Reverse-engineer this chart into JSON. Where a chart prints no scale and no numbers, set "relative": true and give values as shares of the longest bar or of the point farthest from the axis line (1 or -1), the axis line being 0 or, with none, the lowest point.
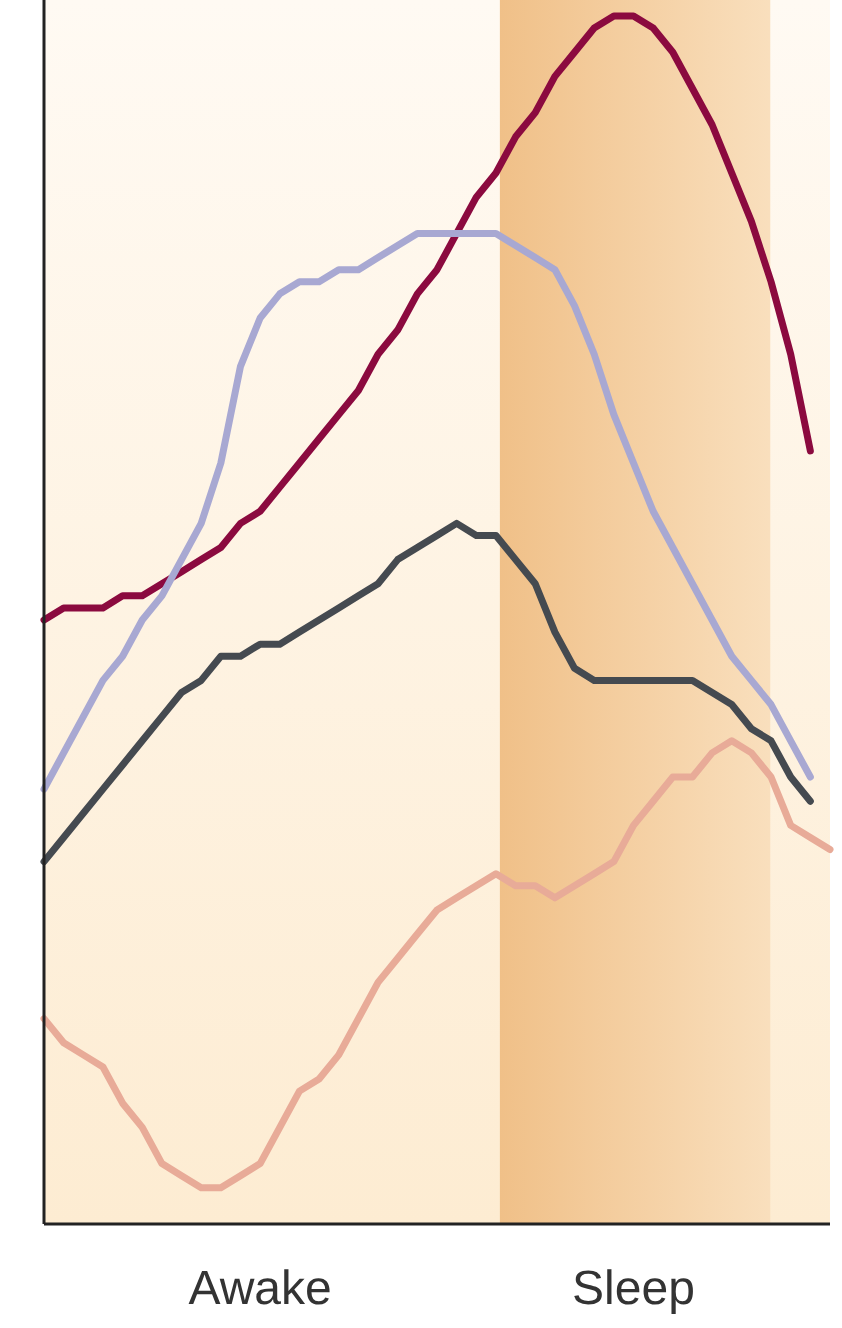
{
  "chart_data": {
    "type": "line",
    "relative": true,
    "tick_labels": "x",
    "line_style": "solid",
    "categories": [
      null,
      null,
      null,
      null,
      null,
      null,
      null,
      null,
      null,
      null,
      null,
      "Awake",
      null,
      null,
      null,
      null,
      null,
      null,
      null,
      null,
      null,
      null,
      null,
      null,
      null,
      null,
      null,
      null,
      null,
      null,
      "Sleep",
      null,
      null,
      null,
      null,
      null,
      null,
      null,
      null,
      null,
      null
    ],
    "series": [
      {
        "color": "#8b0a3f",
        "values": [
          0.5,
          0.51,
          0.51,
          0.51,
          0.52,
          0.52,
          0.53,
          0.54,
          0.55,
          0.56,
          0.58,
          0.59,
          0.61,
          0.63,
          0.65,
          0.67,
          0.69,
          0.72,
          0.74,
          0.77,
          0.79,
          0.82,
          0.85,
          0.87,
          0.9,
          0.92,
          0.95,
          0.97,
          0.99,
          1,
          1,
          0.99,
          0.97,
          0.94,
          0.91,
          0.87,
          0.83,
          0.78,
          0.72,
          0.64,
          null
        ]
      },
      {
        "color": "#a8a8d2",
        "values": [
          0.36,
          0.39,
          0.42,
          0.45,
          0.47,
          0.5,
          0.52,
          0.55,
          0.58,
          0.63,
          0.71,
          0.75,
          0.77,
          0.78,
          0.78,
          0.79,
          0.79,
          0.8,
          0.81,
          0.82,
          0.82,
          0.82,
          0.82,
          0.82,
          0.81,
          0.8,
          0.79,
          0.76,
          0.72,
          0.67,
          0.63,
          0.59,
          0.56,
          0.53,
          0.5,
          0.47,
          0.45,
          0.43,
          0.4,
          0.37,
          null
        ]
      },
      {
        "color": "#454a50",
        "values": [
          0.3,
          0.32,
          0.34,
          0.36,
          0.38,
          0.4,
          0.42,
          0.44,
          0.45,
          0.47,
          0.47,
          0.48,
          0.48,
          0.49,
          0.5,
          0.51,
          0.52,
          0.53,
          0.55,
          0.56,
          0.57,
          0.58,
          0.57,
          0.57,
          0.55,
          0.53,
          0.49,
          0.46,
          0.45,
          0.45,
          0.45,
          0.45,
          0.45,
          0.45,
          0.44,
          0.43,
          0.41,
          0.4,
          0.37,
          0.35,
          null
        ]
      },
      {
        "color": "#e8ab98",
        "values": [
          0.17,
          0.15,
          0.14,
          0.13,
          0.1,
          0.08,
          0.05,
          0.04,
          0.03,
          0.03,
          0.04,
          0.05,
          0.08,
          0.11,
          0.12,
          0.14,
          0.17,
          0.2,
          0.22,
          0.24,
          0.26,
          0.27,
          0.28,
          0.29,
          0.28,
          0.28,
          0.27,
          0.28,
          0.29,
          0.3,
          0.33,
          0.35,
          0.37,
          0.37,
          0.39,
          0.4,
          0.39,
          0.37,
          0.33,
          0.32,
          0.31
        ]
      }
    ]
  }
}
